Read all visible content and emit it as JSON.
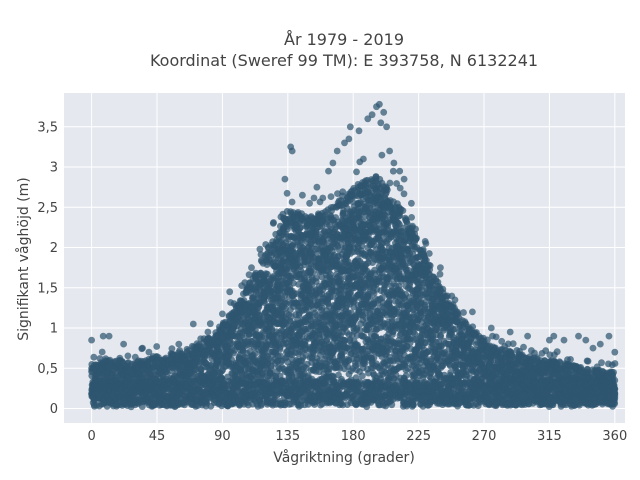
{
  "chart_data": {
    "type": "scatter",
    "title_line1": "År 1979 - 2019",
    "title_line2": "Koordinat (Sweref 99 TM): E 393758, N 6132241",
    "xlabel": "Vågriktning (grader)",
    "ylabel": "Signifikant våghöjd (m)",
    "xlim": [
      -19,
      367
    ],
    "ylim": [
      -0.18,
      3.92
    ],
    "x_ticks": [
      0,
      45,
      90,
      135,
      180,
      225,
      270,
      315,
      360
    ],
    "x_tick_labels": [
      "0",
      "45",
      "90",
      "135",
      "180",
      "225",
      "270",
      "315",
      "360"
    ],
    "y_ticks": [
      0,
      0.5,
      1,
      1.5,
      2,
      2.5,
      3,
      3.5
    ],
    "y_tick_labels": [
      "0",
      "0,5",
      "1",
      "1,5",
      "2",
      "2,5",
      "3",
      "3,5"
    ],
    "grid": true,
    "marker_color": "#2f5670",
    "plot_background": "#e5e8ef",
    "envelope": {
      "x": [
        0,
        10,
        20,
        30,
        45,
        60,
        75,
        85,
        90,
        100,
        110,
        120,
        130,
        135,
        140,
        150,
        160,
        170,
        180,
        190,
        195,
        200,
        210,
        220,
        225,
        230,
        240,
        250,
        260,
        270,
        280,
        300,
        315,
        330,
        345,
        360
      ],
      "y_upper": [
        0.55,
        0.6,
        0.6,
        0.6,
        0.65,
        0.7,
        0.8,
        0.95,
        1.05,
        1.3,
        1.6,
        1.95,
        2.3,
        2.45,
        2.45,
        2.4,
        2.45,
        2.6,
        2.75,
        2.85,
        2.9,
        2.85,
        2.6,
        2.3,
        2.1,
        1.9,
        1.55,
        1.25,
        1.0,
        0.85,
        0.75,
        0.65,
        0.6,
        0.55,
        0.5,
        0.45
      ]
    },
    "outliers": [
      {
        "x": 0,
        "y": 0.85
      },
      {
        "x": 8,
        "y": 0.9
      },
      {
        "x": 12,
        "y": 0.9
      },
      {
        "x": 22,
        "y": 0.8
      },
      {
        "x": 35,
        "y": 0.75
      },
      {
        "x": 60,
        "y": 0.8
      },
      {
        "x": 70,
        "y": 1.05
      },
      {
        "x": 80,
        "y": 0.95
      },
      {
        "x": 95,
        "y": 1.45
      },
      {
        "x": 110,
        "y": 1.75
      },
      {
        "x": 125,
        "y": 2.3
      },
      {
        "x": 133,
        "y": 2.85
      },
      {
        "x": 137,
        "y": 3.25
      },
      {
        "x": 138,
        "y": 3.2
      },
      {
        "x": 145,
        "y": 2.65
      },
      {
        "x": 150,
        "y": 2.55
      },
      {
        "x": 155,
        "y": 2.75
      },
      {
        "x": 163,
        "y": 2.95
      },
      {
        "x": 166,
        "y": 3.05
      },
      {
        "x": 169,
        "y": 3.2
      },
      {
        "x": 174,
        "y": 3.3
      },
      {
        "x": 177,
        "y": 3.35
      },
      {
        "x": 178,
        "y": 3.5
      },
      {
        "x": 184,
        "y": 3.45
      },
      {
        "x": 187,
        "y": 3.1
      },
      {
        "x": 190,
        "y": 3.6
      },
      {
        "x": 193,
        "y": 3.65
      },
      {
        "x": 196,
        "y": 3.75
      },
      {
        "x": 198,
        "y": 3.78
      },
      {
        "x": 199,
        "y": 3.55
      },
      {
        "x": 201,
        "y": 3.68
      },
      {
        "x": 203,
        "y": 3.5
      },
      {
        "x": 205,
        "y": 3.2
      },
      {
        "x": 208,
        "y": 3.05
      },
      {
        "x": 212,
        "y": 2.95
      },
      {
        "x": 215,
        "y": 2.85
      },
      {
        "x": 220,
        "y": 2.55
      },
      {
        "x": 230,
        "y": 2.05
      },
      {
        "x": 240,
        "y": 1.75
      },
      {
        "x": 250,
        "y": 1.35
      },
      {
        "x": 262,
        "y": 1.2
      },
      {
        "x": 275,
        "y": 1.0
      },
      {
        "x": 288,
        "y": 0.95
      },
      {
        "x": 300,
        "y": 0.9
      },
      {
        "x": 315,
        "y": 0.85
      },
      {
        "x": 318,
        "y": 0.9
      },
      {
        "x": 325,
        "y": 0.85
      },
      {
        "x": 335,
        "y": 0.9
      },
      {
        "x": 340,
        "y": 0.85
      },
      {
        "x": 345,
        "y": 0.75
      },
      {
        "x": 350,
        "y": 0.8
      },
      {
        "x": 356,
        "y": 0.9
      },
      {
        "x": 360,
        "y": 0.7
      }
    ]
  }
}
